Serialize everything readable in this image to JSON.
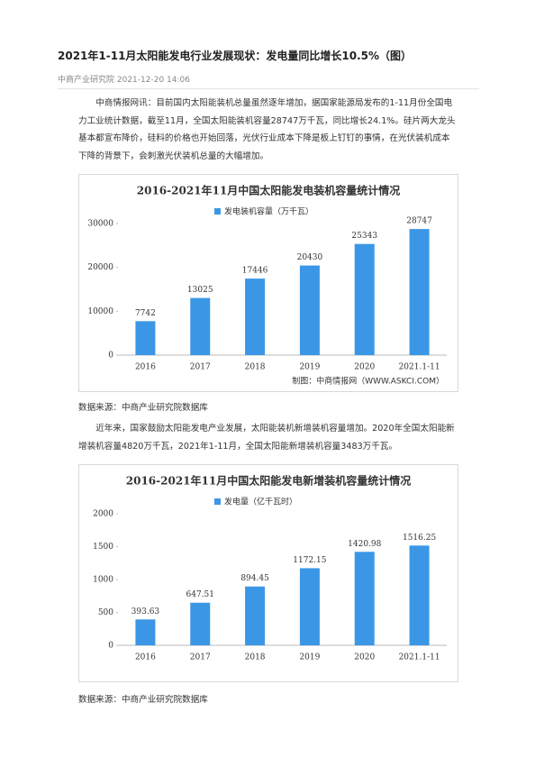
{
  "header": {
    "title": "2021年1-11月太阳能发电行业发展现状：发电量同比增长10.5%（图）",
    "meta": "中商产业研究院 2021-12-20 14:06"
  },
  "paragraphs": [
    "中商情报网讯：目前国内太阳能装机总量虽然逐年增加，据国家能源局发布的1-11月份全国电力工业统计数据，截至11月，全国太阳能装机容量28747万千瓦，同比增长24.1%。硅片两大龙头基本都宣布降价，硅料的价格也开始回落，光伏行业成本下降是板上钉钉的事情，在光伏装机成本下降的背景下，会刺激光伏装机总量的大幅增加。",
    "近年来，国家鼓励太阳能发电产业发展，太阳能装机新增装机容量增加。2020年全国太阳能新增装机容量4820万千瓦，2021年1-11月，全国太阳能新增装机容量3483万千瓦。"
  ],
  "sources": [
    "数据来源：中商产业研究院数据库",
    "数据来源：中商产业研究院数据库"
  ],
  "chart_data": [
    {
      "type": "bar",
      "title": "2016-2021年11月中国太阳能发电装机容量统计情况",
      "categories": [
        "2016",
        "2017",
        "2018",
        "2019",
        "2020",
        "2021.1-11"
      ],
      "series": [
        {
          "name": "发电装机容量（万千瓦）",
          "color": "#3b97e6",
          "values": [
            7742,
            13025,
            17446,
            20430,
            25343,
            28747
          ]
        }
      ],
      "ylim": [
        0,
        30000
      ],
      "yticks": [
        0,
        10000,
        20000,
        30000
      ],
      "credit": "制图：中商情报网（WWW.ASKCI.COM）"
    },
    {
      "type": "bar",
      "title": "2016-2021年11月中国太阳能发电新增装机容量统计情况",
      "categories": [
        "2016",
        "2017",
        "2018",
        "2019",
        "2020",
        "2021.1-11"
      ],
      "series": [
        {
          "name": "发电量（亿千瓦时）",
          "color": "#3b97e6",
          "values": [
            393.63,
            647.51,
            894.45,
            1172.15,
            1420.98,
            1516.25
          ]
        }
      ],
      "ylim": [
        0,
        2000
      ],
      "yticks": [
        0,
        500,
        1000,
        1500,
        2000
      ]
    }
  ]
}
